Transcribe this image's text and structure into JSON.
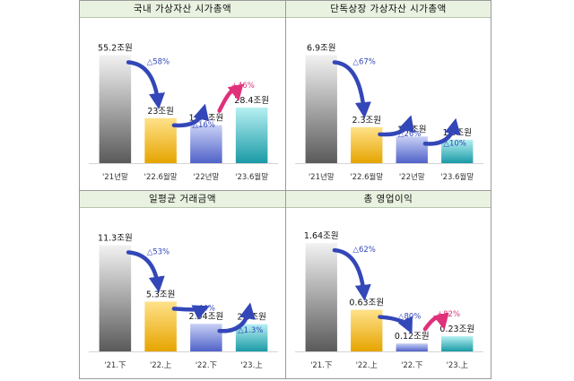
{
  "chart_data": [
    {
      "type": "bar",
      "title": "국내 가상자산 시가총액",
      "categories": [
        "'21년말",
        "'22.6월말",
        "'22년말",
        "'23.6월말"
      ],
      "values": [
        55.2,
        23,
        19.4,
        28.4
      ],
      "value_labels": [
        "55.2조원",
        "23조원",
        "19.4조원",
        "28.4조원"
      ],
      "changes": [
        {
          "from": 0,
          "to": 1,
          "label": "△58%",
          "direction": "down"
        },
        {
          "from": 1,
          "to": 2,
          "label": "△16%",
          "direction": "down"
        },
        {
          "from": 2,
          "to": 3,
          "label": "+46%",
          "direction": "up"
        }
      ],
      "ylim": [
        0,
        60
      ]
    },
    {
      "type": "bar",
      "title": "단독상장 가상자산 시가총액",
      "categories": [
        "'21년말",
        "'22.6월말",
        "'22년말",
        "'23.6월말"
      ],
      "values": [
        6.9,
        2.3,
        1.7,
        1.5
      ],
      "value_labels": [
        "6.9조원",
        "2.3조원",
        "1.7조원",
        "1.5조원"
      ],
      "changes": [
        {
          "from": 0,
          "to": 1,
          "label": "△67%",
          "direction": "down"
        },
        {
          "from": 1,
          "to": 2,
          "label": "△26%",
          "direction": "down"
        },
        {
          "from": 2,
          "to": 3,
          "label": "△10%",
          "direction": "down"
        }
      ],
      "ylim": [
        0,
        7.5
      ]
    },
    {
      "type": "bar",
      "title": "일평균 거래금액",
      "categories": [
        "'21.下",
        "'22.上",
        "'22.下",
        "'23.上"
      ],
      "values": [
        11.3,
        5.3,
        2.94,
        2.9
      ],
      "value_labels": [
        "11.3조원",
        "5.3조원",
        "2.94조원",
        "2.9조원"
      ],
      "changes": [
        {
          "from": 0,
          "to": 1,
          "label": "△53%",
          "direction": "down"
        },
        {
          "from": 1,
          "to": 2,
          "label": "△44%",
          "direction": "down"
        },
        {
          "from": 2,
          "to": 3,
          "label": "△1.3%",
          "direction": "down"
        }
      ],
      "ylim": [
        0,
        12.3
      ]
    },
    {
      "type": "bar",
      "title": "총 영업이익",
      "categories": [
        "'21.下",
        "'22.上",
        "'22.下",
        "'23.上"
      ],
      "values": [
        1.64,
        0.63,
        0.12,
        0.23
      ],
      "value_labels": [
        "1.64조원",
        "0.63조원",
        "0.12조원",
        "0.23조원"
      ],
      "changes": [
        {
          "from": 0,
          "to": 1,
          "label": "△62%",
          "direction": "down"
        },
        {
          "from": 1,
          "to": 2,
          "label": "△80%",
          "direction": "down"
        },
        {
          "from": 2,
          "to": 3,
          "label": "+82%",
          "direction": "up"
        }
      ],
      "ylim": [
        0,
        1.75
      ]
    }
  ],
  "colors": {
    "down_arrow": "#3347b8",
    "up_arrow": "#e0307a",
    "down_label": "#3347b8",
    "up_label": "#e0307a",
    "bar_gradients": [
      [
        "#f2f2f2",
        "#5a5a5a"
      ],
      [
        "#ffe28a",
        "#e6a400"
      ],
      [
        "#c8d0f5",
        "#5062c8"
      ],
      [
        "#b6f0f2",
        "#1a9aa6"
      ]
    ],
    "title_bg": "#e9f2e1"
  }
}
